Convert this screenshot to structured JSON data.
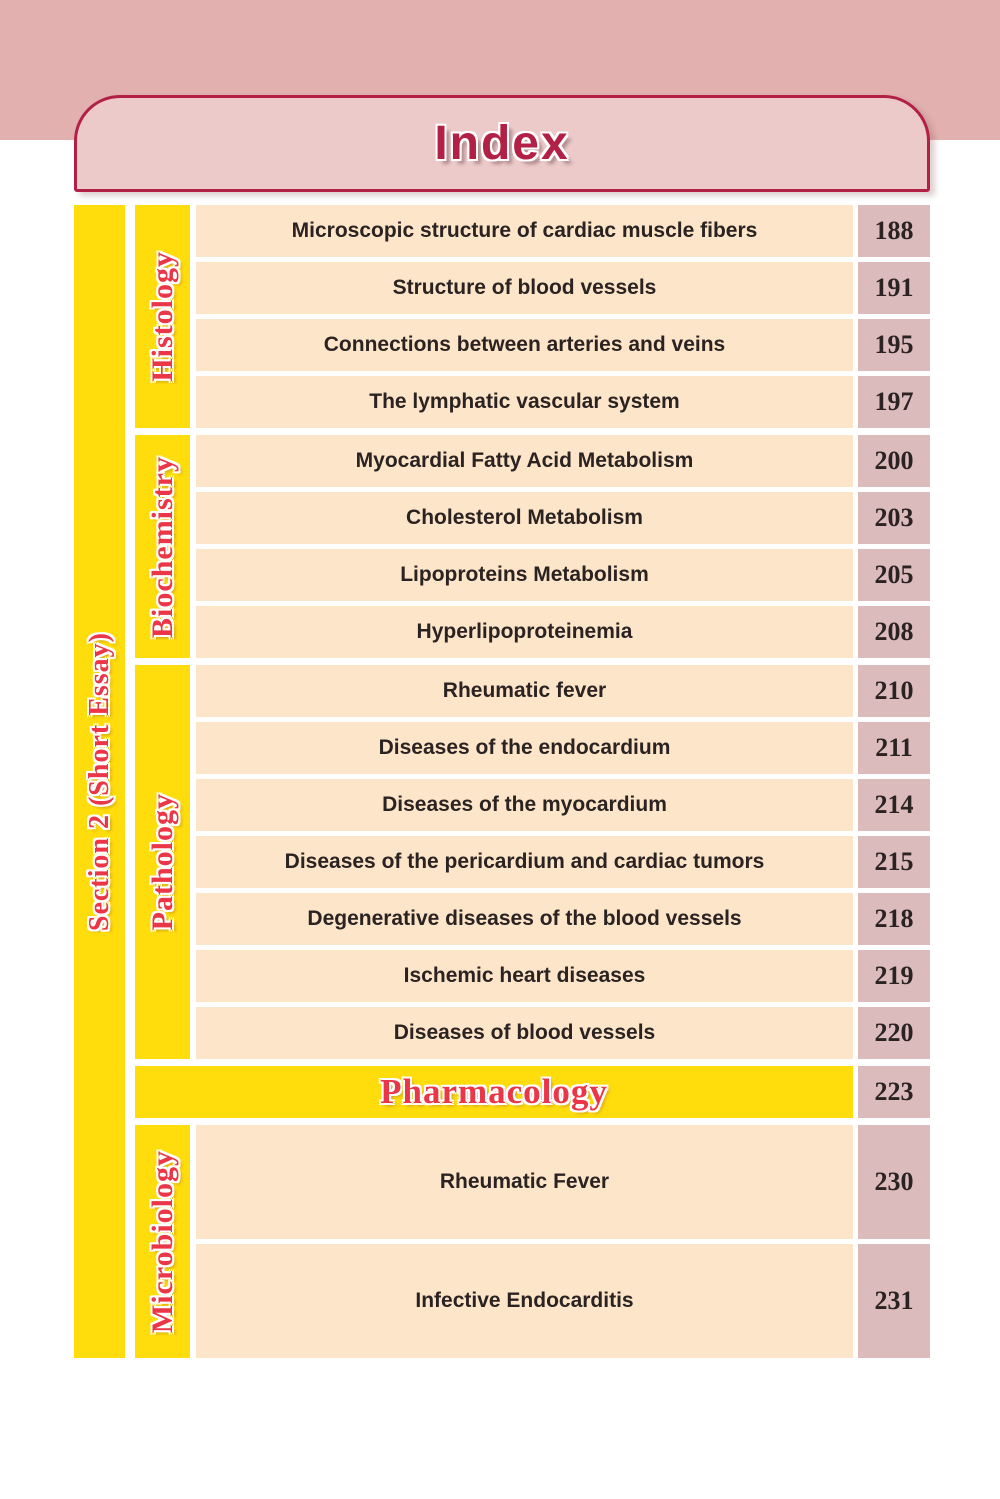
{
  "header": {
    "title": "Index"
  },
  "sidebar": {
    "label": "Section 2 (Short Essay)"
  },
  "sections": [
    {
      "category": "Histology",
      "entries": [
        {
          "title": "Microscopic structure of cardiac muscle fibers",
          "page": "188"
        },
        {
          "title": "Structure of blood vessels",
          "page": "191"
        },
        {
          "title": "Connections between arteries and veins",
          "page": "195"
        },
        {
          "title": "The lymphatic vascular system",
          "page": "197"
        }
      ]
    },
    {
      "category": "Biochemistry",
      "entries": [
        {
          "title": "Myocardial Fatty Acid Metabolism",
          "page": "200"
        },
        {
          "title": "Cholesterol Metabolism",
          "page": "203"
        },
        {
          "title": "Lipoproteins Metabolism",
          "page": "205"
        },
        {
          "title": "Hyperlipoproteinemia",
          "page": "208"
        }
      ]
    },
    {
      "category": "Pathology",
      "entries": [
        {
          "title": "Rheumatic fever",
          "page": "210"
        },
        {
          "title": "Diseases of the endocardium",
          "page": "211"
        },
        {
          "title": "Diseases of the myocardium",
          "page": "214"
        },
        {
          "title": "Diseases of the pericardium and cardiac tumors",
          "page": "215"
        },
        {
          "title": "Degenerative diseases of the blood vessels",
          "page": "218"
        },
        {
          "title": "Ischemic heart diseases",
          "page": "219"
        },
        {
          "title": "Diseases of blood vessels",
          "page": "220"
        }
      ]
    },
    {
      "category": "Pharmacology",
      "banner": true,
      "page": "223"
    },
    {
      "category": "Microbiology",
      "entries": [
        {
          "title": "Rheumatic Fever",
          "page": "230"
        },
        {
          "title": "Infective Endocarditis",
          "page": "231"
        }
      ]
    }
  ],
  "colors": {
    "top_band_pink": "#e2b0af",
    "panel_pink": "#eccac9",
    "crimson": "#b32046",
    "yellow": "#ffdc0c",
    "label_red": "#ea3647",
    "row_peach": "#fce5c9",
    "page_rose": "#dcbbbd",
    "text_dark": "#2b2322"
  }
}
